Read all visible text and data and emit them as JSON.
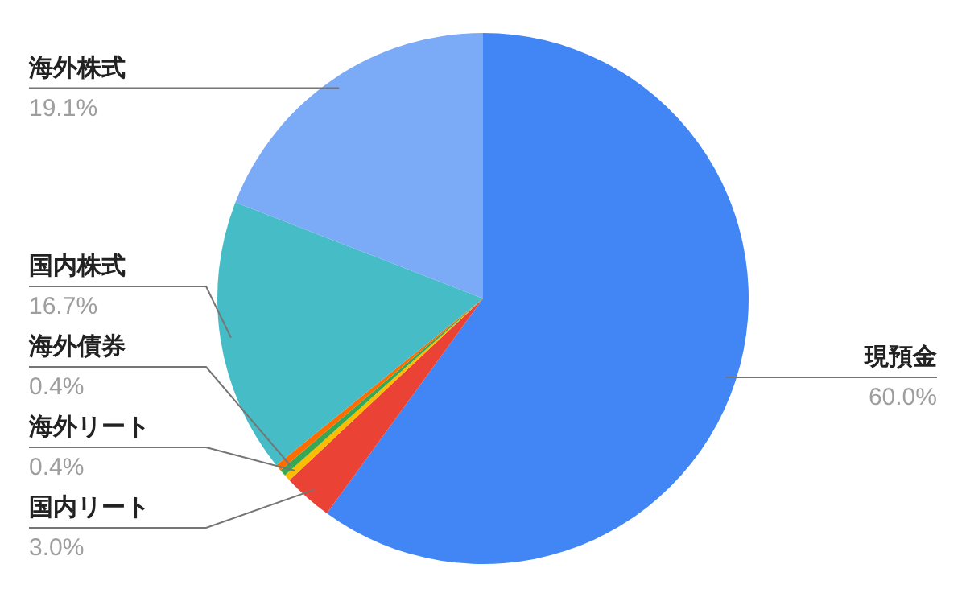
{
  "chart_data": {
    "type": "pie",
    "categories": [
      "現預金",
      "国内リート",
      "海外リート",
      "海外債券",
      null,
      "国内株式",
      "海外株式"
    ],
    "values": [
      60.0,
      3.0,
      0.4,
      0.4,
      0.4,
      16.7,
      19.1
    ],
    "colors": [
      "#4285f4",
      "#ea4335",
      "#fbbc04",
      "#34a853",
      "#ff6d01",
      "#46bdc6",
      "#7baaf7"
    ],
    "value_labels": [
      "60.0%",
      "3.0%",
      "0.4%",
      "0.4%",
      null,
      "16.7%",
      "19.1%"
    ]
  }
}
